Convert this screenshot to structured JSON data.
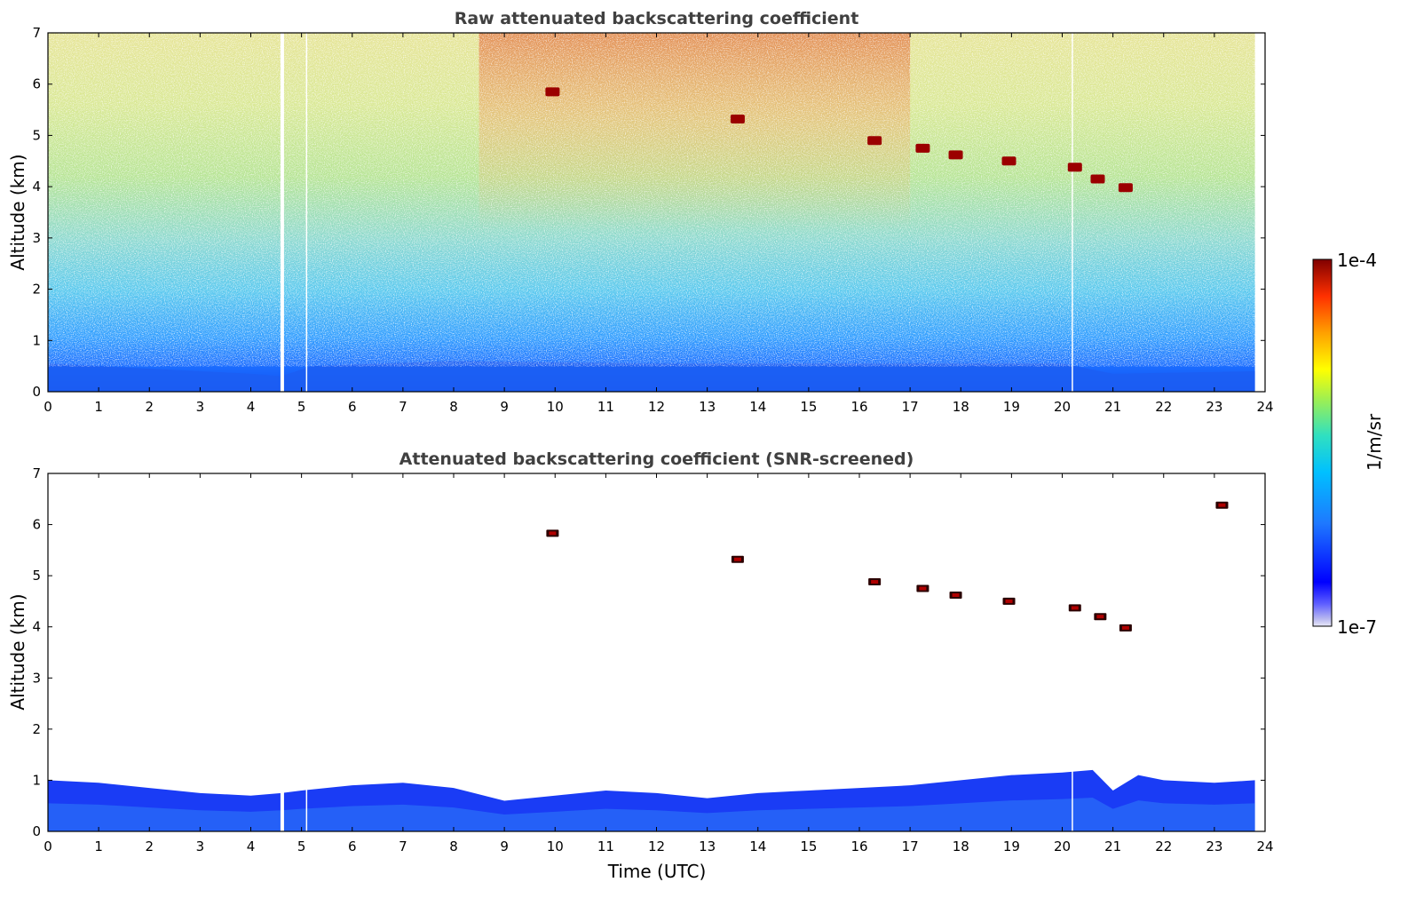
{
  "chart_data": [
    {
      "type": "heatmap",
      "title": "Raw attenuated backscattering coefficient",
      "xlabel": "",
      "ylabel": "Altitude (km)",
      "xlim": [
        0,
        24
      ],
      "ylim": [
        0,
        7
      ],
      "x_ticks": [
        "0",
        "1",
        "2",
        "3",
        "4",
        "5",
        "6",
        "7",
        "8",
        "9",
        "10",
        "11",
        "12",
        "13",
        "14",
        "15",
        "16",
        "17",
        "18",
        "19",
        "20",
        "21",
        "22",
        "23",
        "24"
      ],
      "y_ticks": [
        "0",
        "1",
        "2",
        "3",
        "4",
        "5",
        "6",
        "7"
      ],
      "data_end_hour": 23.8,
      "gaps_hours": [
        4.62,
        5.1,
        20.2
      ],
      "colorscale": "jet",
      "layers": [
        {
          "alt_from": 0.0,
          "alt_to": 0.5,
          "level": "low",
          "color": "#1a4cf0"
        },
        {
          "alt_from": 0.5,
          "alt_to": 1.5,
          "level": "low-mid",
          "color": "#1e90ff"
        },
        {
          "alt_from": 1.5,
          "alt_to": 3.0,
          "level": "mid",
          "color": "#40c8e0"
        },
        {
          "alt_from": 3.0,
          "alt_to": 7.0,
          "level": "mid-high",
          "color": "#a8e070"
        }
      ],
      "clouds": [
        {
          "x": 9.95,
          "y": 5.85
        },
        {
          "x": 13.6,
          "y": 5.32
        },
        {
          "x": 16.3,
          "y": 4.9
        },
        {
          "x": 17.25,
          "y": 4.75
        },
        {
          "x": 17.9,
          "y": 4.62
        },
        {
          "x": 18.95,
          "y": 4.5
        },
        {
          "x": 20.25,
          "y": 4.38
        },
        {
          "x": 20.7,
          "y": 4.15
        },
        {
          "x": 21.25,
          "y": 3.98
        }
      ]
    },
    {
      "type": "heatmap",
      "title": "Attenuated backscattering coefficient (SNR-screened)",
      "xlabel": "Time (UTC)",
      "ylabel": "Altitude (km)",
      "xlim": [
        0,
        24
      ],
      "ylim": [
        0,
        7
      ],
      "x_ticks": [
        "0",
        "1",
        "2",
        "3",
        "4",
        "5",
        "6",
        "7",
        "8",
        "9",
        "10",
        "11",
        "12",
        "13",
        "14",
        "15",
        "16",
        "17",
        "18",
        "19",
        "20",
        "21",
        "22",
        "23",
        "24"
      ],
      "y_ticks": [
        "0",
        "1",
        "2",
        "3",
        "4",
        "5",
        "6",
        "7"
      ],
      "data_end_hour": 23.8,
      "gaps_hours": [
        4.62,
        5.1,
        20.2
      ],
      "boundary_layer_top_km": [
        [
          0.0,
          1.0
        ],
        [
          1.0,
          0.95
        ],
        [
          2.0,
          0.85
        ],
        [
          3.0,
          0.75
        ],
        [
          4.0,
          0.7
        ],
        [
          4.6,
          0.75
        ],
        [
          5.0,
          0.8
        ],
        [
          6.0,
          0.9
        ],
        [
          7.0,
          0.95
        ],
        [
          8.0,
          0.85
        ],
        [
          9.0,
          0.6
        ],
        [
          10.0,
          0.7
        ],
        [
          11.0,
          0.8
        ],
        [
          12.0,
          0.75
        ],
        [
          13.0,
          0.65
        ],
        [
          14.0,
          0.75
        ],
        [
          15.0,
          0.8
        ],
        [
          16.0,
          0.85
        ],
        [
          17.0,
          0.9
        ],
        [
          18.0,
          1.0
        ],
        [
          19.0,
          1.1
        ],
        [
          20.0,
          1.15
        ],
        [
          20.6,
          1.2
        ],
        [
          21.0,
          0.8
        ],
        [
          21.5,
          1.1
        ],
        [
          22.0,
          1.0
        ],
        [
          23.0,
          0.95
        ],
        [
          23.8,
          1.0
        ]
      ],
      "clouds": [
        {
          "x": 9.95,
          "y": 5.83
        },
        {
          "x": 13.6,
          "y": 5.32
        },
        {
          "x": 16.3,
          "y": 4.88
        },
        {
          "x": 17.25,
          "y": 4.75
        },
        {
          "x": 17.9,
          "y": 4.62
        },
        {
          "x": 18.95,
          "y": 4.5
        },
        {
          "x": 20.25,
          "y": 4.37
        },
        {
          "x": 20.75,
          "y": 4.2
        },
        {
          "x": 21.25,
          "y": 3.98
        },
        {
          "x": 23.15,
          "y": 6.38
        }
      ]
    }
  ],
  "colorbar": {
    "min_label": "1e-7",
    "max_label": "1e-4",
    "unit_label": "1/m/sr",
    "stops": [
      "#0000aa",
      "#0000ff",
      "#1e6bff",
      "#00bfff",
      "#40e0d0",
      "#adff2f",
      "#ffff00",
      "#ffa500",
      "#ff4500",
      "#b22222",
      "#800000"
    ]
  }
}
